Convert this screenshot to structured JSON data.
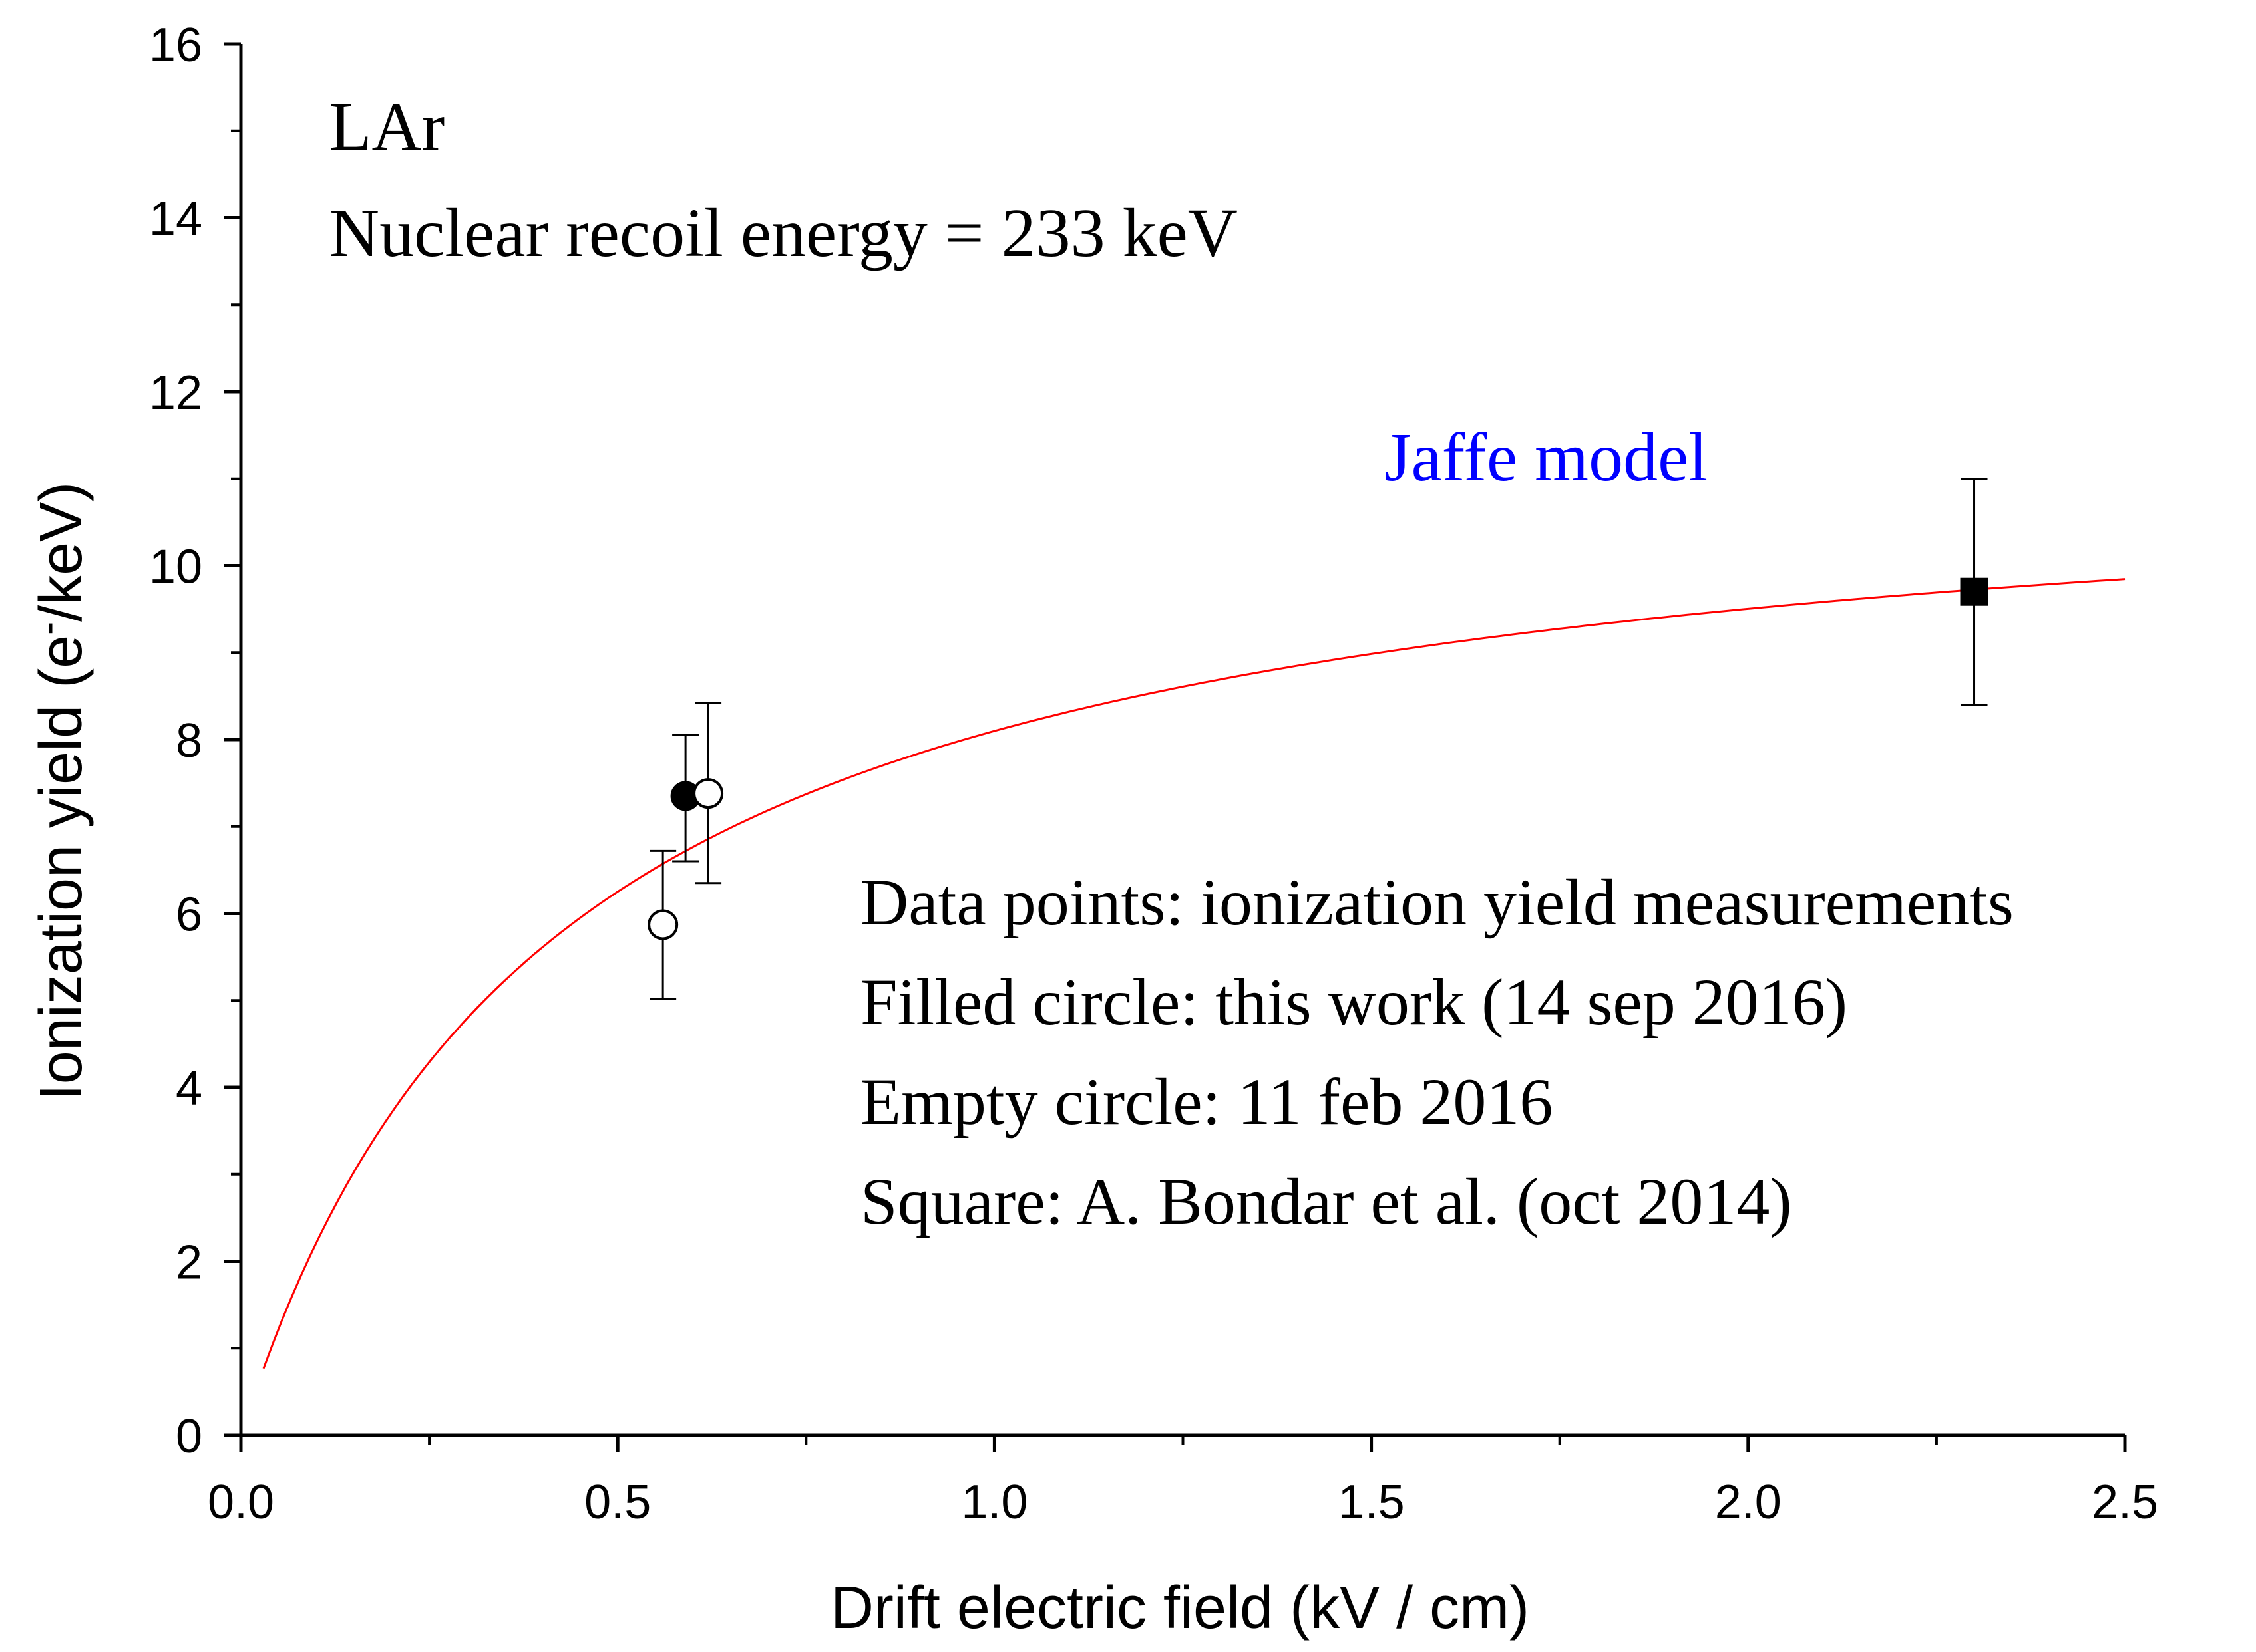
{
  "chart_data": {
    "type": "scatter",
    "title": "",
    "xlabel": "Drift electric field (kV / cm)",
    "ylabel_main": "Ionization yield (e",
    "ylabel_sup": "-",
    "ylabel_tail": "/keV)",
    "xlim": [
      0,
      2.5
    ],
    "ylim": [
      0,
      16
    ],
    "x_ticks": [
      0.0,
      0.5,
      1.0,
      1.5,
      2.0,
      2.5
    ],
    "x_tick_labels": [
      "0.0",
      "0.5",
      "1.0",
      "1.5",
      "2.0",
      "2.5"
    ],
    "x_minor_step": 0.25,
    "y_ticks": [
      0,
      2,
      4,
      6,
      8,
      10,
      12,
      14,
      16
    ],
    "y_tick_labels": [
      "0",
      "2",
      "4",
      "6",
      "8",
      "10",
      "12",
      "14",
      "16"
    ],
    "y_minor_step": 1,
    "grid": false,
    "annotations": {
      "medium": "LAr",
      "energy": "Nuclear recoil energy = 233 keV",
      "model": "Jaffe model",
      "legend_lines": [
        "Data points: ionization yield measurements",
        "Filled circle: this work (14 sep 2016)",
        "Empty circle: 11 feb 2016",
        "Square: A. Bondar et al. (oct 2014)"
      ]
    },
    "model_curve": {
      "name": "Jaffe model",
      "color": "#ff0000",
      "x_start": 0.03,
      "x_end": 2.5,
      "y_max": 11.5,
      "k": 0.42,
      "note": "y = y_max * x / (x + k)"
    },
    "series": [
      {
        "name": "Filled circle: this work (14 sep 2016)",
        "marker": "filled-circle",
        "points": [
          {
            "x": 0.59,
            "y": 7.35,
            "yerr_low": 6.6,
            "yerr_high": 8.05
          }
        ]
      },
      {
        "name": "Empty circle: 11 feb 2016",
        "marker": "empty-circle",
        "points": [
          {
            "x": 0.56,
            "y": 5.87,
            "yerr_low": 5.02,
            "yerr_high": 6.72
          },
          {
            "x": 0.62,
            "y": 7.38,
            "yerr_low": 6.35,
            "yerr_high": 8.42
          }
        ]
      },
      {
        "name": "Square: A. Bondar et al. (oct 2014)",
        "marker": "filled-square",
        "points": [
          {
            "x": 2.3,
            "y": 9.7,
            "yerr_low": 8.4,
            "yerr_high": 11.0
          }
        ]
      }
    ],
    "colors": {
      "axis": "#000000",
      "model_text": "#0000ff",
      "curve": "#ff0000",
      "markers": "#000000"
    }
  }
}
